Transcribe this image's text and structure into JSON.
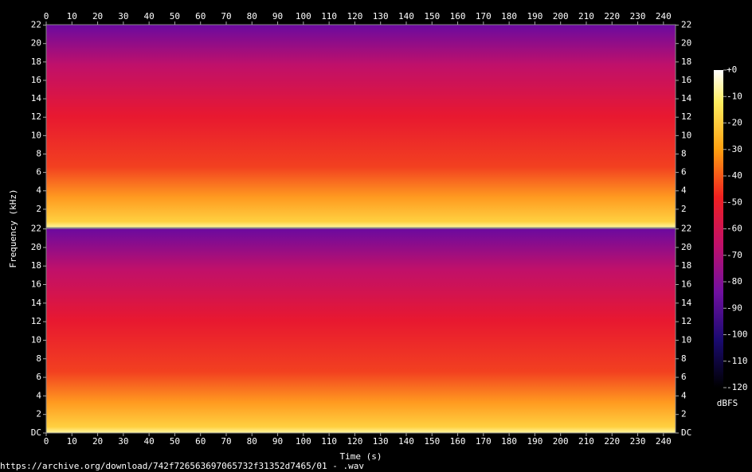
{
  "chart_data": [
    {
      "type": "spectrogram",
      "ylabel": "Frequency (kHz)",
      "xlim": [
        0,
        244.7
      ],
      "xticks": [
        0,
        10,
        20,
        30,
        40,
        50,
        60,
        70,
        80,
        90,
        100,
        110,
        120,
        130,
        140,
        150,
        160,
        170,
        180,
        190,
        200,
        210,
        220,
        230,
        240
      ],
      "ylim": [
        0,
        22.05
      ],
      "yticks": [
        2,
        4,
        6,
        8,
        10,
        12,
        14,
        16,
        18,
        20,
        22
      ]
    },
    {
      "type": "spectrogram",
      "xlabel": "Time (s)",
      "xlim": [
        0,
        244.7
      ],
      "xticks": [
        0,
        10,
        20,
        30,
        40,
        50,
        60,
        70,
        80,
        90,
        100,
        110,
        120,
        130,
        140,
        150,
        160,
        170,
        180,
        190,
        200,
        210,
        220,
        230,
        240
      ],
      "ylim": [
        0,
        22.05
      ],
      "yticks": [
        {
          "value": 0,
          "label": "DC"
        },
        2,
        4,
        6,
        8,
        10,
        12,
        14,
        16,
        18,
        20,
        22
      ]
    }
  ],
  "colorbar": {
    "label": "dBFS",
    "lim": [
      -120,
      0
    ],
    "ticks": [
      {
        "value": 0,
        "label": "+0"
      },
      -10,
      -20,
      -30,
      -40,
      -50,
      -60,
      -70,
      -80,
      -90,
      -100,
      -110,
      -120
    ]
  },
  "footer": "https://archive.org/download/742f726563697065732f31352d7465/01 - .wav"
}
